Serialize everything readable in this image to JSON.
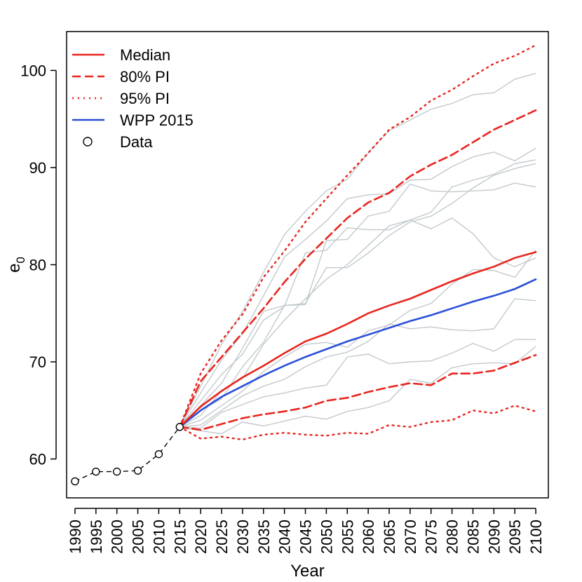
{
  "chart_data": {
    "type": "line",
    "xlabel": "Year",
    "ylabel": "e",
    "ylabel_subscript": "0",
    "xlim": [
      1988,
      2103
    ],
    "ylim": [
      56,
      104
    ],
    "x_ticks": [
      1990,
      1995,
      2000,
      2005,
      2010,
      2015,
      2020,
      2025,
      2030,
      2035,
      2040,
      2045,
      2050,
      2055,
      2060,
      2065,
      2070,
      2075,
      2080,
      2085,
      2090,
      2095,
      2100
    ],
    "y_ticks": [
      60,
      70,
      80,
      90,
      100
    ],
    "grid": false,
    "legend": {
      "placement": "top-left",
      "items": [
        {
          "label": "Median",
          "style": "solid",
          "color": "#e8251f"
        },
        {
          "label": "80% PI",
          "style": "dashed",
          "color": "#e8251f"
        },
        {
          "label": "95% PI",
          "style": "dotted",
          "color": "#e8251f"
        },
        {
          "label": "WPP 2015",
          "style": "solid",
          "color": "#2a4fd8"
        },
        {
          "label": "Data",
          "style": "circle",
          "color": "#000000"
        }
      ]
    },
    "data": {
      "x": [
        1990,
        1995,
        2000,
        2005,
        2010,
        2015
      ],
      "values": [
        57.7,
        58.7,
        58.7,
        58.8,
        60.5,
        63.3
      ]
    },
    "projection_x": [
      2015,
      2020,
      2025,
      2030,
      2035,
      2040,
      2045,
      2050,
      2055,
      2060,
      2065,
      2070,
      2075,
      2080,
      2085,
      2090,
      2095,
      2100
    ],
    "series": [
      {
        "name": "Median",
        "color": "#e8251f",
        "style": "solid",
        "values": [
          63.3,
          65.4,
          67.0,
          68.4,
          69.6,
          70.9,
          72.1,
          72.9,
          73.9,
          75.0,
          75.8,
          76.5,
          77.4,
          78.3,
          79.1,
          79.8,
          80.7,
          81.3
        ]
      },
      {
        "name": "80% PI",
        "color": "#e8251f",
        "style": "dashed",
        "values": [
          63.3,
          68.0,
          70.5,
          73.0,
          75.5,
          78.2,
          80.6,
          82.7,
          84.8,
          86.4,
          87.4,
          89.1,
          90.3,
          91.3,
          92.6,
          93.9,
          94.9,
          95.9
        ]
      },
      {
        "name": "80% PI",
        "color": "#e8251f",
        "style": "dashed",
        "values": [
          63.3,
          63.0,
          63.6,
          64.2,
          64.6,
          64.9,
          65.3,
          66.0,
          66.3,
          66.9,
          67.4,
          67.8,
          67.6,
          68.8,
          68.8,
          69.1,
          69.9,
          70.7
        ]
      },
      {
        "name": "95% PI",
        "color": "#e8251f",
        "style": "dotted",
        "values": [
          63.3,
          68.8,
          72.2,
          74.9,
          78.7,
          81.4,
          84.4,
          86.8,
          89.2,
          91.5,
          93.9,
          95.2,
          96.9,
          98.0,
          99.4,
          100.7,
          101.5,
          102.6
        ]
      },
      {
        "name": "95% PI",
        "color": "#e8251f",
        "style": "dotted",
        "values": [
          63.3,
          62.1,
          62.3,
          62.0,
          62.5,
          62.7,
          62.5,
          62.4,
          62.7,
          62.6,
          63.5,
          63.3,
          63.8,
          64.0,
          65.0,
          64.7,
          65.5,
          64.9
        ]
      },
      {
        "name": "WPP 2015",
        "color": "#2a4fd8",
        "style": "solid",
        "values": [
          63.3,
          65.0,
          66.4,
          67.5,
          68.6,
          69.6,
          70.5,
          71.3,
          72.1,
          72.8,
          73.5,
          74.2,
          74.8,
          75.5,
          76.2,
          76.8,
          77.5,
          78.5
        ]
      }
    ],
    "trajectories": [
      [
        63.3,
        67.5,
        71.8,
        75.2,
        79.2,
        83.1,
        85.5,
        87.6,
        88.8,
        91.5,
        93.8,
        94.9,
        96.0,
        96.6,
        97.5,
        97.7,
        99.1,
        99.7
      ],
      [
        63.3,
        66.8,
        70.2,
        72.9,
        76.8,
        80.8,
        82.6,
        84.5,
        86.8,
        87.2,
        87.3,
        88.7,
        88.8,
        90.1,
        91.1,
        91.6,
        90.7,
        92.0
      ],
      [
        63.3,
        66.0,
        68.7,
        70.8,
        74.3,
        75.7,
        81.2,
        81.5,
        83.8,
        83.6,
        83.6,
        84.6,
        85.4,
        88.0,
        88.7,
        89.3,
        90.4,
        90.8
      ],
      [
        63.3,
        65.5,
        67.8,
        71.4,
        75.2,
        75.8,
        75.9,
        82.5,
        82.6,
        85.0,
        85.5,
        88.3,
        87.6,
        87.5,
        87.6,
        87.7,
        88.4,
        88.0
      ],
      [
        63.3,
        65.0,
        66.2,
        69.5,
        72.0,
        75.8,
        76.0,
        79.7,
        79.7,
        81.2,
        83.0,
        84.4,
        85.0,
        86.3,
        87.9,
        89.2,
        89.9,
        90.4
      ],
      [
        63.3,
        64.5,
        67.0,
        68.3,
        71.8,
        74.3,
        76.5,
        78.5,
        80.0,
        82.0,
        84.0,
        84.6,
        83.7,
        84.8,
        83.2,
        80.7,
        79.8,
        80.7
      ],
      [
        63.3,
        64.0,
        65.5,
        67.0,
        69.0,
        70.5,
        71.8,
        72.0,
        71.5,
        73.2,
        73.8,
        75.3,
        76.0,
        78.0,
        79.5,
        79.4,
        78.7,
        81.5
      ],
      [
        63.3,
        63.5,
        65.0,
        66.5,
        67.5,
        68.2,
        69.5,
        70.5,
        71.0,
        72.1,
        73.9,
        73.4,
        73.6,
        73.3,
        73.2,
        73.4,
        76.5,
        76.3
      ],
      [
        63.3,
        63.2,
        64.8,
        65.6,
        66.4,
        66.8,
        67.3,
        67.6,
        70.5,
        70.8,
        69.8,
        70.0,
        70.1,
        70.9,
        71.9,
        71.1,
        72.3,
        72.3
      ],
      [
        63.3,
        62.9,
        62.6,
        63.8,
        63.4,
        63.9,
        64.4,
        64.1,
        64.9,
        65.3,
        66.0,
        68.2,
        67.8,
        69.4,
        69.8,
        69.9,
        69.8,
        71.6
      ]
    ]
  }
}
